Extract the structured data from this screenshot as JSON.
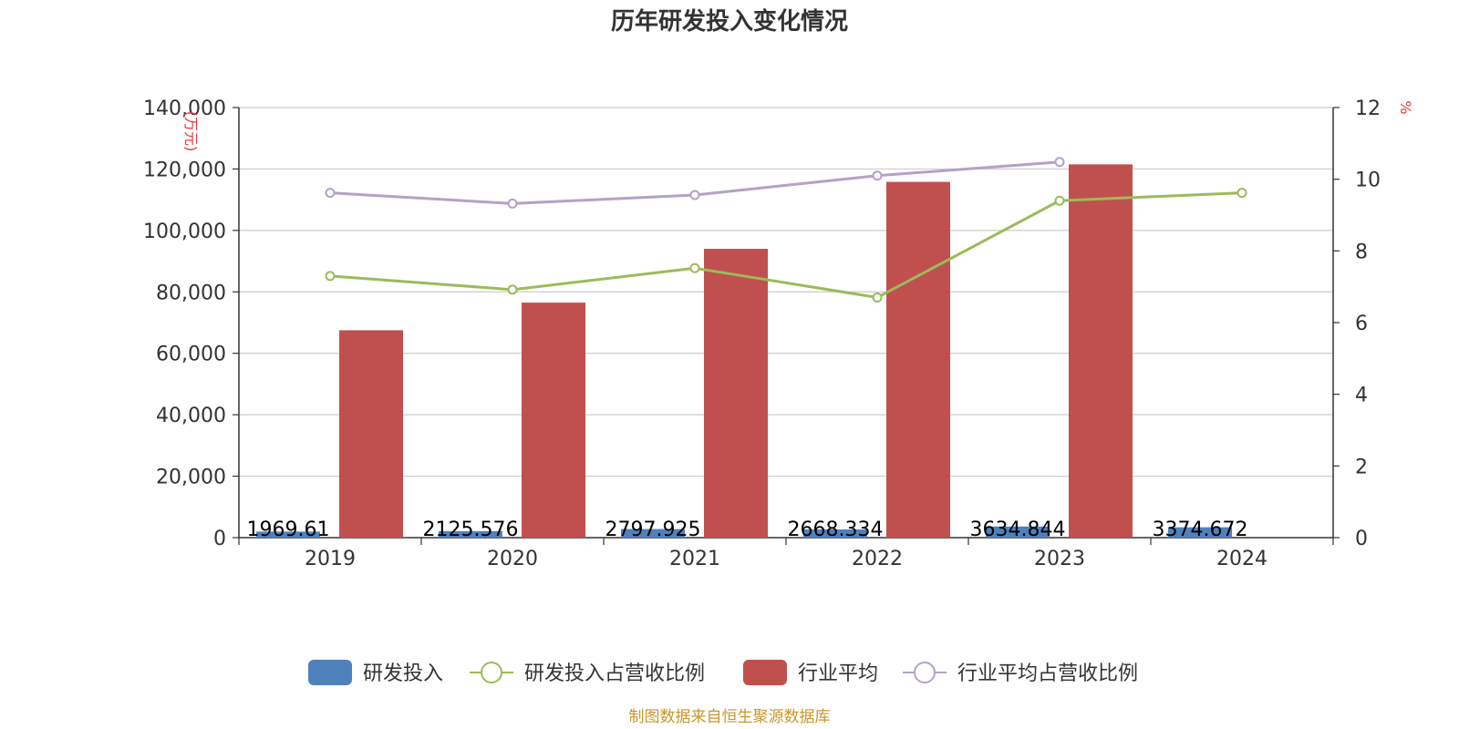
{
  "chart_data": {
    "type": "bar",
    "title": "历年研发投入变化情况",
    "categories": [
      "2019",
      "2020",
      "2021",
      "2022",
      "2023",
      "2024"
    ],
    "y_left": {
      "unit": "(万元)",
      "min": 0,
      "max": 140000,
      "ticks": [
        "0",
        "20,000",
        "40,000",
        "60,000",
        "80,000",
        "100,000",
        "120,000",
        "140,000"
      ]
    },
    "y_right": {
      "unit": "%",
      "min": 0,
      "max": 12,
      "ticks": [
        "0",
        "2",
        "4",
        "6",
        "8",
        "10",
        "12"
      ]
    },
    "grid": true,
    "legend_position": "bottom",
    "series": [
      {
        "name": "研发投入",
        "kind": "bar",
        "axis": "left",
        "color": "#4f81bd",
        "values": [
          1969.61,
          2125.576,
          2797.925,
          2668.334,
          3634.844,
          3374.672
        ],
        "labels": [
          "1969.61",
          "2125.576",
          "2797.925",
          "2668.334",
          "3634.844",
          "3374.672"
        ]
      },
      {
        "name": "研发投入占营收比例",
        "kind": "line",
        "axis": "right",
        "color": "#9bbb59",
        "values": [
          7.3,
          6.92,
          7.52,
          6.7,
          9.4,
          9.62
        ]
      },
      {
        "name": "行业平均",
        "kind": "bar",
        "axis": "left",
        "color": "#c0504d",
        "values": [
          67500,
          76500,
          94000,
          115800,
          121500,
          null
        ]
      },
      {
        "name": "行业平均占营收比例",
        "kind": "line",
        "axis": "right",
        "color": "#b3a2c7",
        "values": [
          9.62,
          9.32,
          9.56,
          10.1,
          10.48,
          null
        ]
      }
    ]
  },
  "source": {
    "text": "制图数据来自恒生聚源数据库",
    "color": "#c9962b"
  }
}
